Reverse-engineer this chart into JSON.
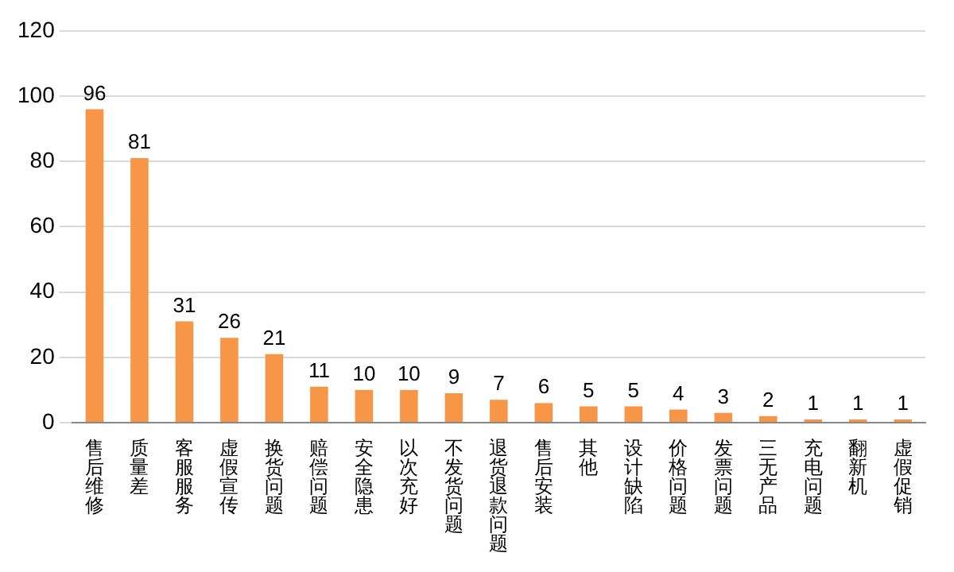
{
  "chart_data": {
    "type": "bar",
    "categories": [
      "售后维修",
      "质量差",
      "客服服务",
      "虚假宣传",
      "换货问题",
      "赔偿问题",
      "安全隐患",
      "以次充好",
      "不发货问题",
      "退货退款问题",
      "售后安装",
      "其他",
      "设计缺陷",
      "价格问题",
      "发票问题",
      "三无产品",
      "充电问题",
      "翻新机",
      "虚假促销"
    ],
    "values": [
      96,
      81,
      31,
      26,
      21,
      11,
      10,
      10,
      9,
      7,
      6,
      5,
      5,
      4,
      3,
      2,
      1,
      1,
      1
    ],
    "color": "#f79646",
    "ylim": [
      0,
      120
    ],
    "yticks": [
      0,
      20,
      40,
      60,
      80,
      100,
      120
    ],
    "grid": "y",
    "data_labels": true,
    "legend": false
  }
}
